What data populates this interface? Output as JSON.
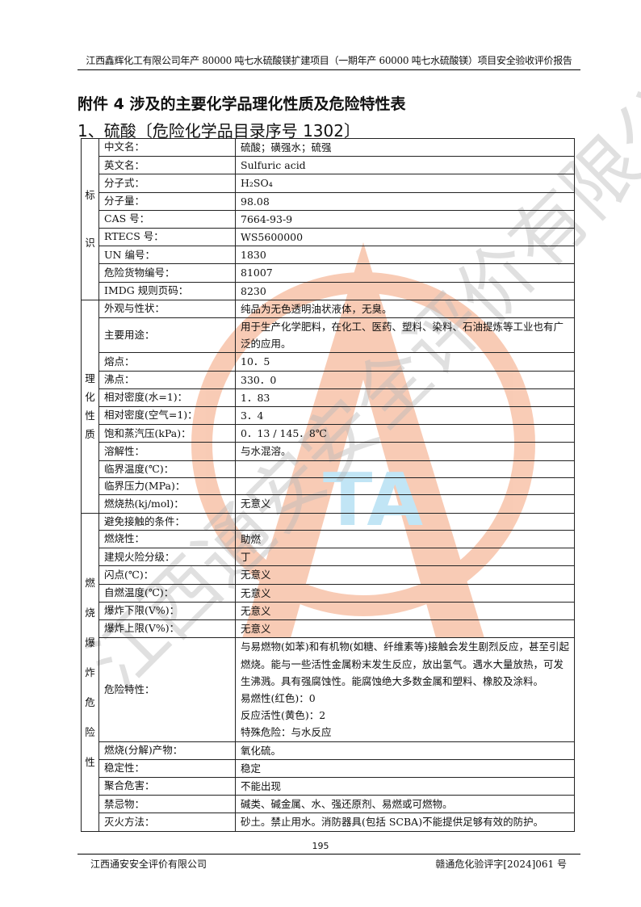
{
  "header": "江西鑫辉化工有限公司年产 80000 吨七水硫酸镁扩建项目（一期年产 60000 吨七水硫酸镁）项目安全验收评价报告",
  "title": "附件 4 涉及的主要化学品理化性质及危险特性表",
  "subtitle": "1、硫酸〔危险化学品目录序号 1302〕",
  "watermark": {
    "text": "江西通安安全评价有限公司",
    "logo_letters": "TA",
    "colors": {
      "logo": "#f4a27a",
      "logo_inner": "#8fd0ee",
      "text": "#bbbbbb",
      "red_text": "#f08a8a"
    }
  },
  "groups": [
    {
      "label": [
        "标",
        "识"
      ],
      "rows": [
        {
          "label": "中文名：",
          "value": [
            "硫酸；磺强水；硫强"
          ]
        },
        {
          "label": "英文名：",
          "value": [
            "Sulfuric acid"
          ]
        },
        {
          "label": "分子式：",
          "value": [
            "H₂SO₄"
          ]
        },
        {
          "label": "分子量：",
          "value": [
            "98.08"
          ]
        },
        {
          "label": "CAS 号：",
          "value": [
            "7664-93-9"
          ]
        },
        {
          "label": "RTECS 号：",
          "value": [
            "WS5600000"
          ]
        },
        {
          "label": "UN 编号：",
          "value": [
            "1830"
          ]
        },
        {
          "label": "危险货物编号：",
          "value": [
            "81007"
          ]
        },
        {
          "label": "IMDG 规则页码：",
          "value": [
            "8230"
          ]
        }
      ]
    },
    {
      "label": [
        "理",
        "化",
        "性",
        "质"
      ],
      "rows": [
        {
          "label": "外观与性状：",
          "value": [
            "纯品为无色透明油状液体，无臭。"
          ]
        },
        {
          "label": "主要用途：",
          "value": [
            "用于生产化学肥料，在化工、医药、塑料、染料、石油提炼等工业也有广泛的应用。"
          ]
        },
        {
          "label": "熔点：",
          "value": [
            "10．5"
          ]
        },
        {
          "label": "沸点：",
          "value": [
            "330．0"
          ]
        },
        {
          "label": "相对密度(水=1)：",
          "value": [
            "1．83"
          ]
        },
        {
          "label": "相对密度(空气=1)：",
          "value": [
            "3．4"
          ]
        },
        {
          "label": "饱和蒸汽压(kPa)：",
          "value": [
            "0．13 / 145．8℃"
          ]
        },
        {
          "label": "溶解性：",
          "value": [
            "与水混溶。"
          ]
        },
        {
          "label": "临界温度(℃)：",
          "value": [
            ""
          ]
        },
        {
          "label": "临界压力(MPa)：",
          "value": [
            ""
          ]
        },
        {
          "label": "燃烧热(kj/mol)：",
          "value": [
            "无意义"
          ]
        }
      ]
    },
    {
      "label": [
        "燃",
        "烧",
        "爆",
        "炸",
        "危",
        "险",
        "性"
      ],
      "rows": [
        {
          "label": "避免接触的条件：",
          "value": [
            ""
          ]
        },
        {
          "label": "燃烧性：",
          "value": [
            "助燃"
          ]
        },
        {
          "label": "建规火险分级：",
          "value": [
            "丁"
          ]
        },
        {
          "label": "闪点(℃)：",
          "value": [
            "无意义"
          ]
        },
        {
          "label": "自燃温度(℃)：",
          "value": [
            "无意义"
          ]
        },
        {
          "label": "爆炸下限(V%)：",
          "value": [
            "无意义"
          ]
        },
        {
          "label": "爆炸上限(V%)：",
          "value": [
            "无意义"
          ]
        },
        {
          "label": "危险特性：",
          "value": [
            "与易燃物(如苯)和有机物(如糖、纤维素等)接触会发生剧烈反应，甚至引起燃烧。能与一些活性金属粉末发生反应，放出氢气。遇水大量放热，可发生沸溅。具有强腐蚀性。能腐蚀绝大多数金属和塑料、橡胶及涂料。",
            "易燃性(红色)：0",
            "反应活性(黄色)：2",
            "特殊危险：与水反应"
          ]
        },
        {
          "label": "燃烧(分解)产物：",
          "value": [
            "氧化硫。"
          ]
        },
        {
          "label": "稳定性：",
          "value": [
            "稳定"
          ]
        },
        {
          "label": "聚合危害：",
          "value": [
            "不能出现"
          ]
        },
        {
          "label": "禁忌物：",
          "value": [
            "碱类、碱金属、水、强还原剂、易燃或可燃物。"
          ]
        },
        {
          "label": "灭火方法：",
          "value": [
            "砂土。禁止用水。消防器具(包括 SCBA)不能提供足够有效的防护。"
          ]
        }
      ]
    }
  ],
  "footer": {
    "page": "195",
    "left": "江西通安安全评价有限公司",
    "right": "赣通危化验评字[2024]061 号"
  }
}
